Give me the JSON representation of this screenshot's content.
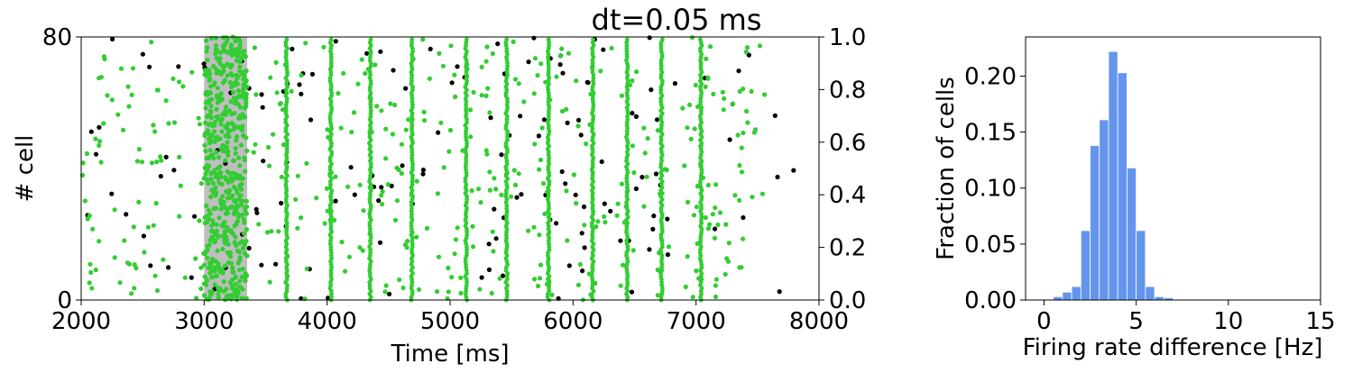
{
  "colors": {
    "green": "#32CD32",
    "black": "#000000",
    "shade": "#BEBEBE",
    "hist": "#6495ED"
  },
  "chart_data": [
    {
      "type": "scatter",
      "title": "dt=0.05 ms",
      "xlabel": "Time [ms]",
      "ylabel": "# cell",
      "xlim": [
        2000,
        8000
      ],
      "ylim": [
        0,
        80
      ],
      "xticks": [
        "2000",
        "3000",
        "4000",
        "5000",
        "6000",
        "7000",
        "8000"
      ],
      "yticks": [
        "0",
        "80"
      ],
      "right_axis": {
        "ylim": [
          0,
          1
        ],
        "ticks": [
          "0.0",
          "0.2",
          "0.4",
          "0.6",
          "0.8",
          "1.0"
        ]
      },
      "stimulus_window": {
        "start": 3000,
        "end": 3350
      },
      "green_bursts": [
        3000,
        3050,
        3100,
        3150,
        3200,
        3250,
        3300,
        3670,
        4030,
        4350,
        4690,
        5130,
        5460,
        5800,
        6160,
        6440,
        6720,
        7040
      ],
      "grid": false,
      "legend": "none"
    },
    {
      "type": "bar",
      "xlabel": "Firing rate difference [Hz]",
      "ylabel": "Fraction of cells",
      "xlim": [
        -1,
        15
      ],
      "ylim": [
        0,
        0.235
      ],
      "xticks": [
        "0",
        "5",
        "10",
        "15"
      ],
      "yticks": [
        "0.00",
        "0.05",
        "0.10",
        "0.15",
        "0.20"
      ],
      "bin_width": 0.5,
      "bin_starts": [
        0.0,
        0.5,
        1.0,
        1.5,
        2.0,
        2.5,
        3.0,
        3.5,
        4.0,
        4.5,
        5.0,
        5.5,
        6.0,
        6.5,
        7.0
      ],
      "values": [
        0.0005,
        0.003,
        0.007,
        0.012,
        0.062,
        0.138,
        0.161,
        0.222,
        0.203,
        0.118,
        0.062,
        0.012,
        0.003,
        0.002,
        0.0005
      ],
      "grid": false,
      "legend": "none"
    }
  ]
}
